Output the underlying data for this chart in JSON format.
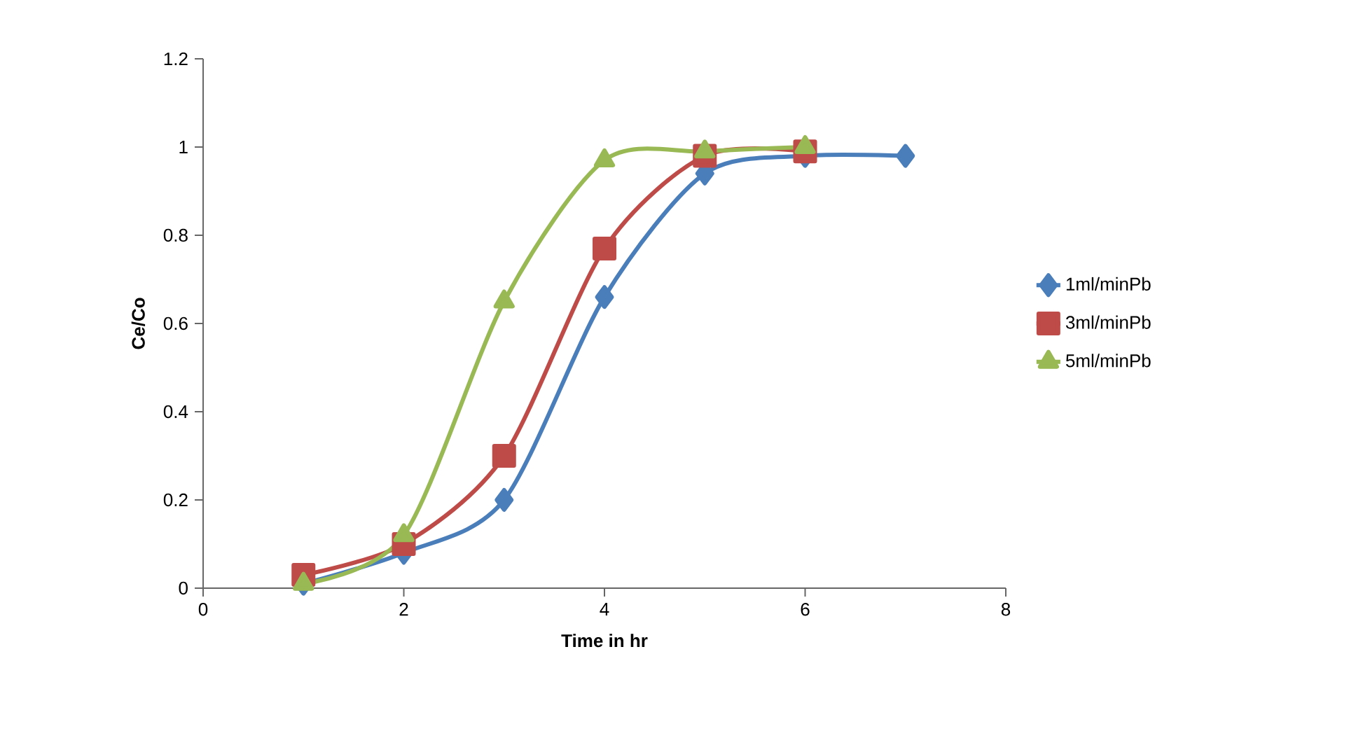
{
  "chart_data": {
    "type": "line",
    "xlabel": "Time in hr",
    "ylabel": "Ce/Co",
    "x": [
      1,
      2,
      3,
      4,
      5,
      6,
      7
    ],
    "series": [
      {
        "name": "1ml/minPb",
        "color": "#4a7ebb",
        "marker": "diamond",
        "values": [
          0.01,
          0.08,
          0.2,
          0.66,
          0.94,
          0.98,
          0.98
        ]
      },
      {
        "name": "3ml/minPb",
        "color": "#be4b48",
        "marker": "square",
        "values": [
          0.03,
          0.1,
          0.3,
          0.77,
          0.98,
          0.99,
          null
        ]
      },
      {
        "name": "5ml/minPb",
        "color": "#98b954",
        "marker": "triangle",
        "values": [
          0.01,
          0.12,
          0.65,
          0.97,
          0.99,
          1.0,
          null
        ]
      }
    ],
    "xlim": [
      0,
      8
    ],
    "xticks": [
      0,
      2,
      4,
      6,
      8
    ],
    "ylim": [
      0,
      1.2
    ],
    "yticks": [
      0,
      0.2,
      0.4,
      0.6,
      0.8,
      1,
      1.2
    ],
    "grid": false,
    "legend": "right",
    "line_style": "solid"
  }
}
